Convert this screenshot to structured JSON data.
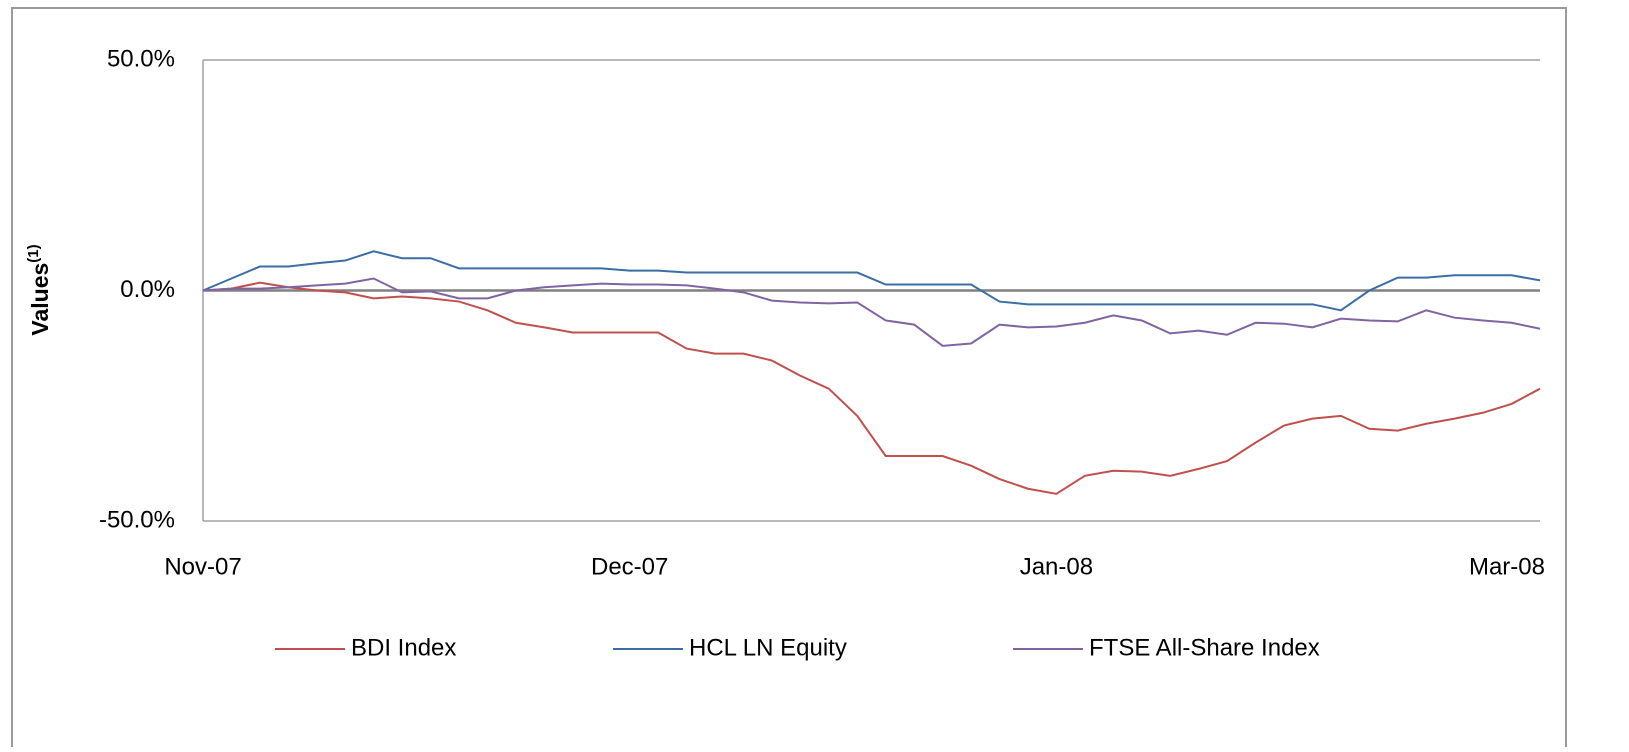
{
  "chart_data": {
    "type": "line",
    "ylabel": "Values",
    "ylabel_superscript": "(1)",
    "x": [
      0,
      2,
      4,
      6,
      8,
      10,
      12,
      14,
      16,
      18,
      20,
      22,
      24,
      26,
      28,
      30,
      32,
      34,
      36,
      38,
      40,
      42,
      44,
      46,
      48,
      50,
      52,
      54,
      56,
      58,
      60,
      62,
      64,
      66,
      68,
      70,
      72,
      74,
      76,
      78,
      80,
      82,
      84,
      86,
      88,
      90,
      92,
      94
    ],
    "xlim": [
      0,
      94
    ],
    "xticks": [
      {
        "value": 0,
        "label": "Nov-07"
      },
      {
        "value": 30,
        "label": "Dec-07"
      },
      {
        "value": 60,
        "label": "Jan-08"
      },
      {
        "value": 94,
        "label": "Mar-08"
      }
    ],
    "ylim": [
      -50,
      50
    ],
    "yticks": [
      {
        "value": -50,
        "label": "-50.0%"
      },
      {
        "value": 0,
        "label": "0.0%"
      },
      {
        "value": 50,
        "label": "50.0%"
      }
    ],
    "grid": true,
    "legend": "bottom",
    "series": [
      {
        "name": "BDI Index",
        "color": "#c0504d",
        "values": [
          0,
          0.4,
          1.7,
          0.7,
          0,
          -0.4,
          -1.7,
          -1.3,
          -1.7,
          -2.4,
          -4.3,
          -7.0,
          -8.0,
          -9.1,
          -9.1,
          -9.1,
          -9.1,
          -12.6,
          -13.7,
          -13.7,
          -15.2,
          -18.5,
          -21.3,
          -27.2,
          -35.9,
          -35.9,
          -35.9,
          -38.0,
          -40.9,
          -43.0,
          -44.1,
          -40.2,
          -39.1,
          -39.3,
          -40.2,
          -38.7,
          -37.0,
          -33.0,
          -29.3,
          -27.8,
          -27.2,
          -30.0,
          -30.4,
          -28.9,
          -27.8,
          -26.5,
          -24.6,
          -21.3
        ]
      },
      {
        "name": "HCL LN Equity",
        "color": "#3a6ea5",
        "values": [
          0,
          2.6,
          5.2,
          5.2,
          5.9,
          6.5,
          8.5,
          7.0,
          7.0,
          4.8,
          4.8,
          4.8,
          4.8,
          4.8,
          4.8,
          4.3,
          4.3,
          3.9,
          3.9,
          3.9,
          3.9,
          3.9,
          3.9,
          3.9,
          1.3,
          1.3,
          1.3,
          1.3,
          -2.4,
          -3.0,
          -3.0,
          -3.0,
          -3.0,
          -3.0,
          -3.0,
          -3.0,
          -3.0,
          -3.0,
          -3.0,
          -3.0,
          -4.3,
          0,
          2.8,
          2.8,
          3.3,
          3.3,
          3.3,
          2.2
        ]
      },
      {
        "name": "FTSE All-Share Index",
        "color": "#8064a2",
        "values": [
          0,
          0.4,
          0.4,
          0.7,
          1.1,
          1.5,
          2.6,
          -0.4,
          -0.2,
          -1.7,
          -1.7,
          0,
          0.7,
          1.1,
          1.5,
          1.3,
          1.3,
          1.1,
          0.4,
          -0.4,
          -2.2,
          -2.6,
          -2.8,
          -2.6,
          -6.5,
          -7.4,
          -12.0,
          -11.5,
          -7.4,
          -8.0,
          -7.8,
          -7.0,
          -5.4,
          -6.5,
          -9.3,
          -8.7,
          -9.6,
          -7.0,
          -7.2,
          -8.0,
          -6.1,
          -6.5,
          -6.7,
          -4.3,
          -5.9,
          -6.5,
          -7.0,
          -8.3
        ]
      }
    ]
  }
}
